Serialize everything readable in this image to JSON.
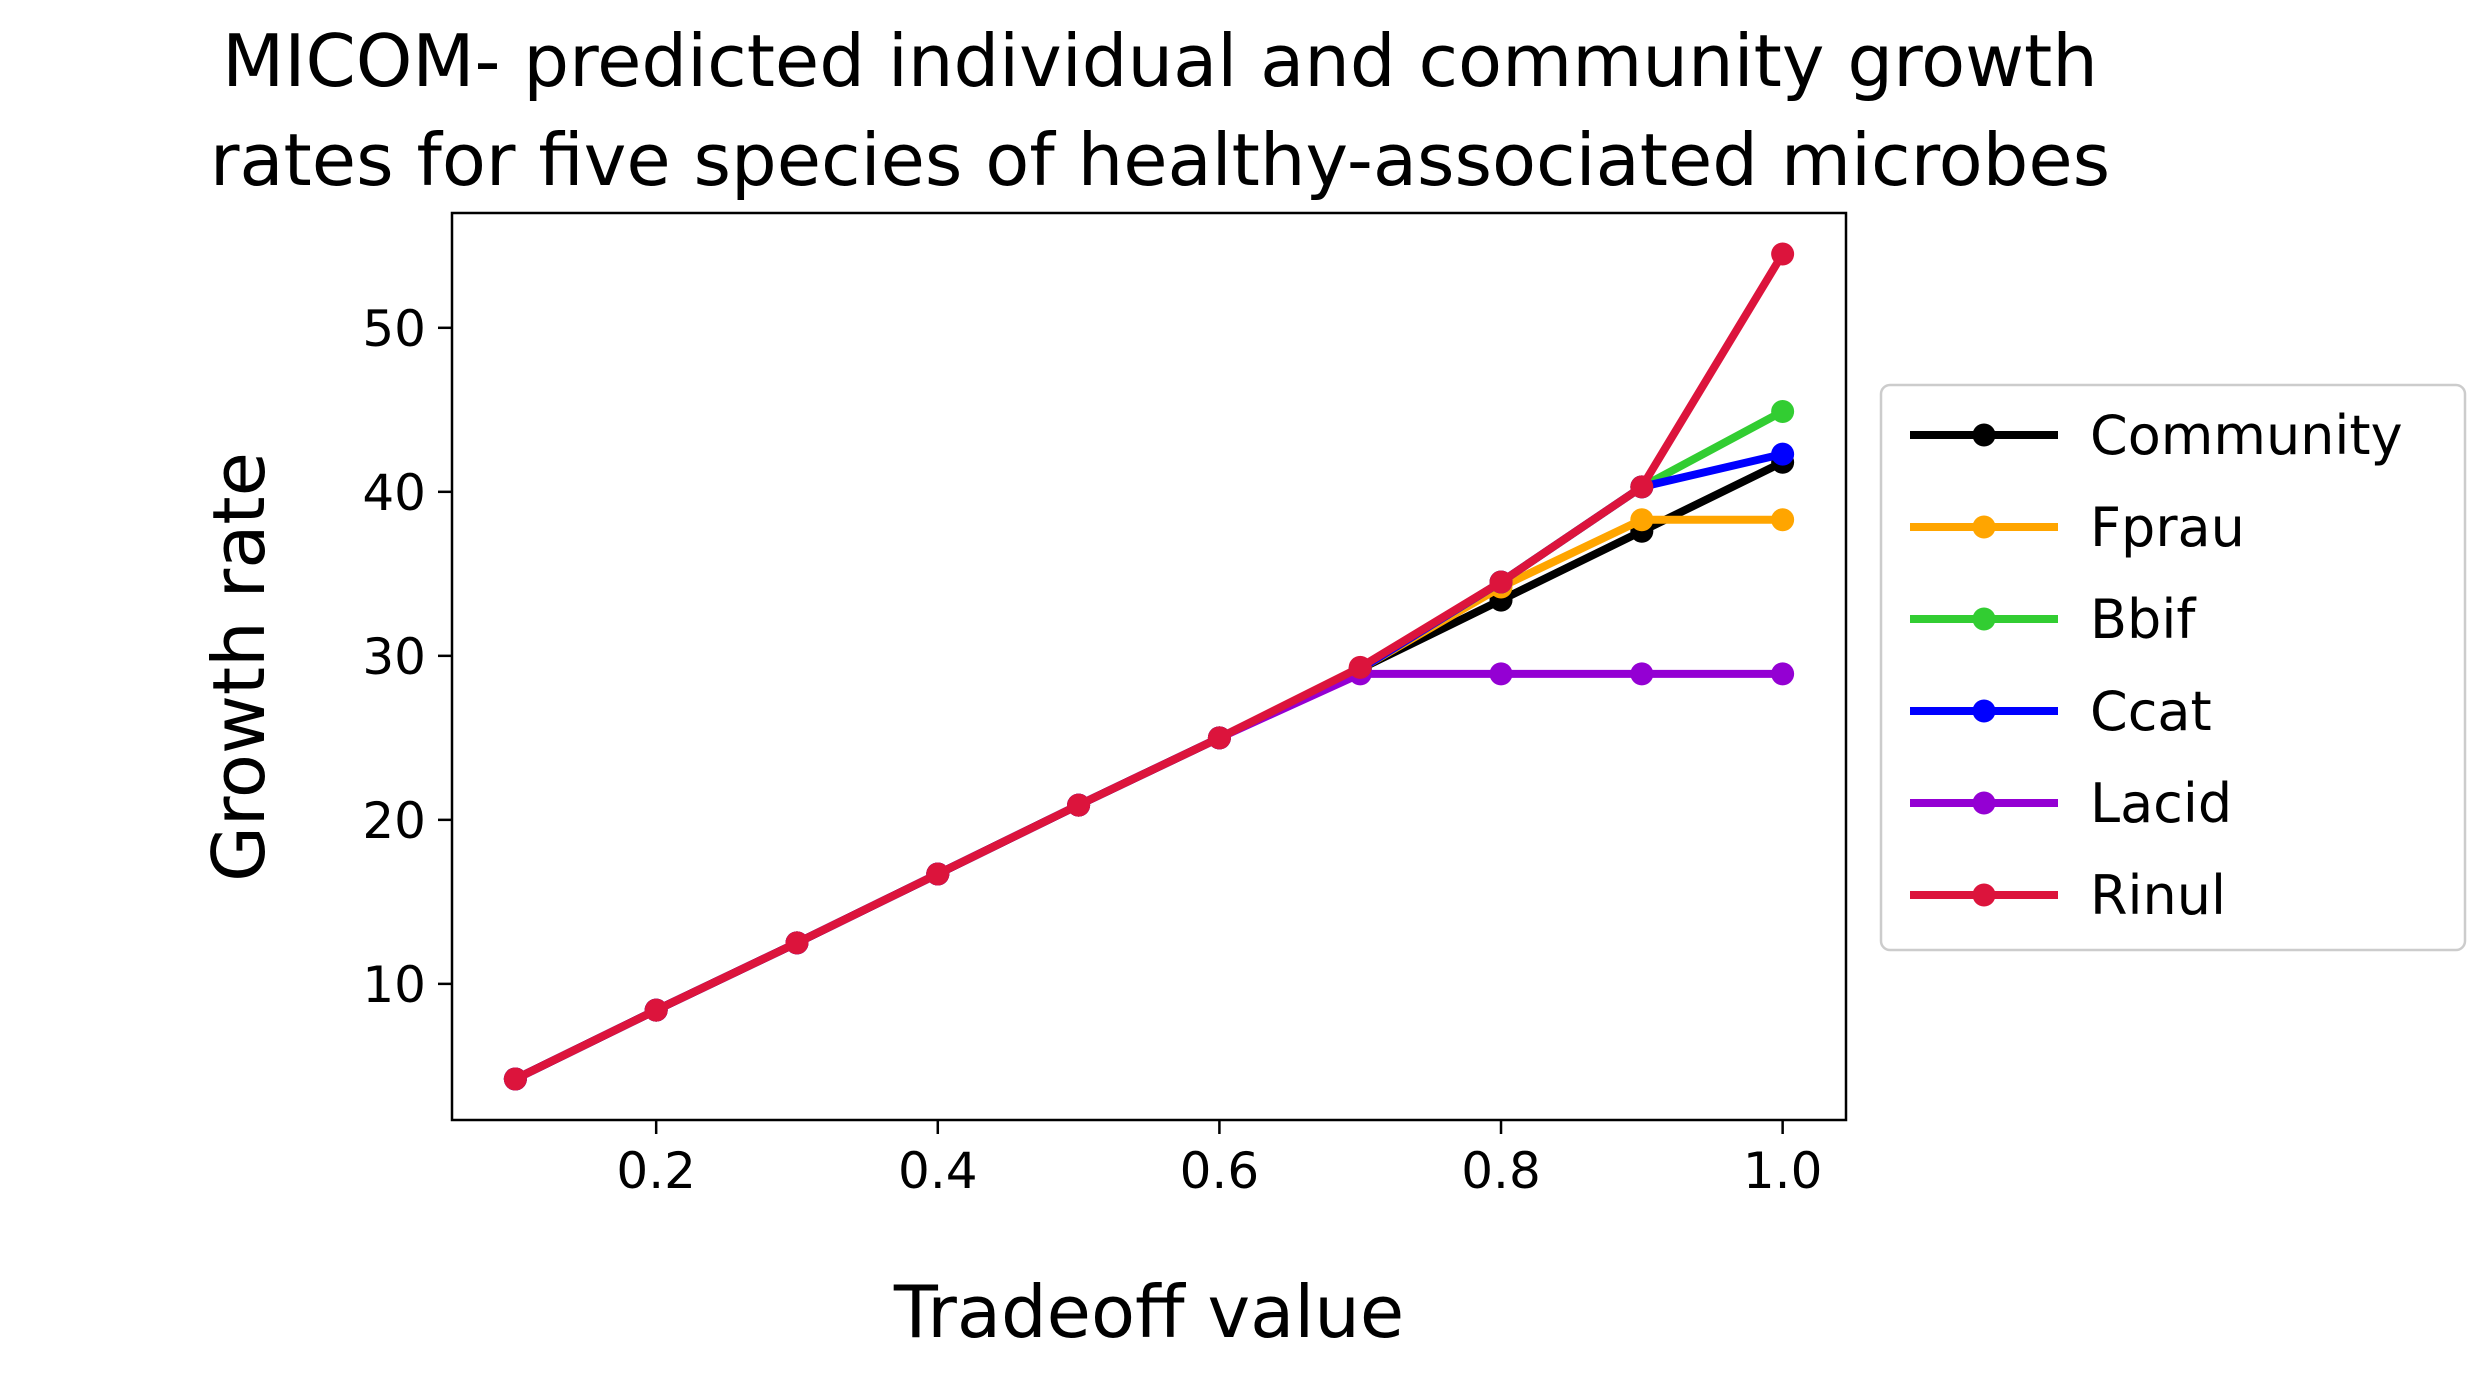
{
  "chart_data": {
    "type": "line",
    "title_lines": [
      "MICOM- predicted individual and community growth",
      "rates for five species of healthy-associated microbes"
    ],
    "xlabel": "Tradeoff value",
    "ylabel": "Growth rate",
    "xlim": [
      0.055,
      1.045
    ],
    "ylim": [
      1.7,
      57.0
    ],
    "xticks": [
      0.2,
      0.4,
      0.6,
      0.8,
      1.0
    ],
    "xtick_labels": [
      "0.2",
      "0.4",
      "0.6",
      "0.8",
      "1.0"
    ],
    "yticks": [
      10,
      20,
      30,
      40,
      50
    ],
    "ytick_labels": [
      "10",
      "20",
      "30",
      "40",
      "50"
    ],
    "grid": false,
    "legend_position": "outside-right",
    "x": [
      0.1,
      0.2,
      0.3,
      0.4,
      0.5,
      0.6,
      0.7,
      0.8,
      0.9,
      1.0
    ],
    "series": [
      {
        "name": "Community",
        "color": "#000000",
        "values": [
          4.2,
          8.4,
          12.5,
          16.7,
          20.9,
          25.0,
          29.2,
          33.4,
          37.6,
          41.8
        ]
      },
      {
        "name": "Fprau",
        "color": "#ffa500",
        "values": [
          4.2,
          8.4,
          12.5,
          16.7,
          20.9,
          25.0,
          29.2,
          34.2,
          38.3,
          38.3
        ]
      },
      {
        "name": "Bbif",
        "color": "#32cd32",
        "values": [
          4.2,
          8.4,
          12.5,
          16.7,
          20.9,
          25.0,
          29.2,
          34.5,
          40.3,
          44.9
        ]
      },
      {
        "name": "Ccat",
        "color": "#0000ff",
        "values": [
          4.2,
          8.4,
          12.5,
          16.7,
          20.9,
          25.0,
          29.2,
          34.5,
          40.3,
          42.3
        ]
      },
      {
        "name": "Lacid",
        "color": "#9400d3",
        "values": [
          4.2,
          8.4,
          12.5,
          16.7,
          20.9,
          25.0,
          28.9,
          28.9,
          28.9,
          28.9
        ]
      },
      {
        "name": "Rinul",
        "color": "#dc143c",
        "values": [
          4.2,
          8.4,
          12.5,
          16.7,
          20.9,
          25.0,
          29.3,
          34.5,
          40.3,
          54.5
        ]
      }
    ]
  }
}
